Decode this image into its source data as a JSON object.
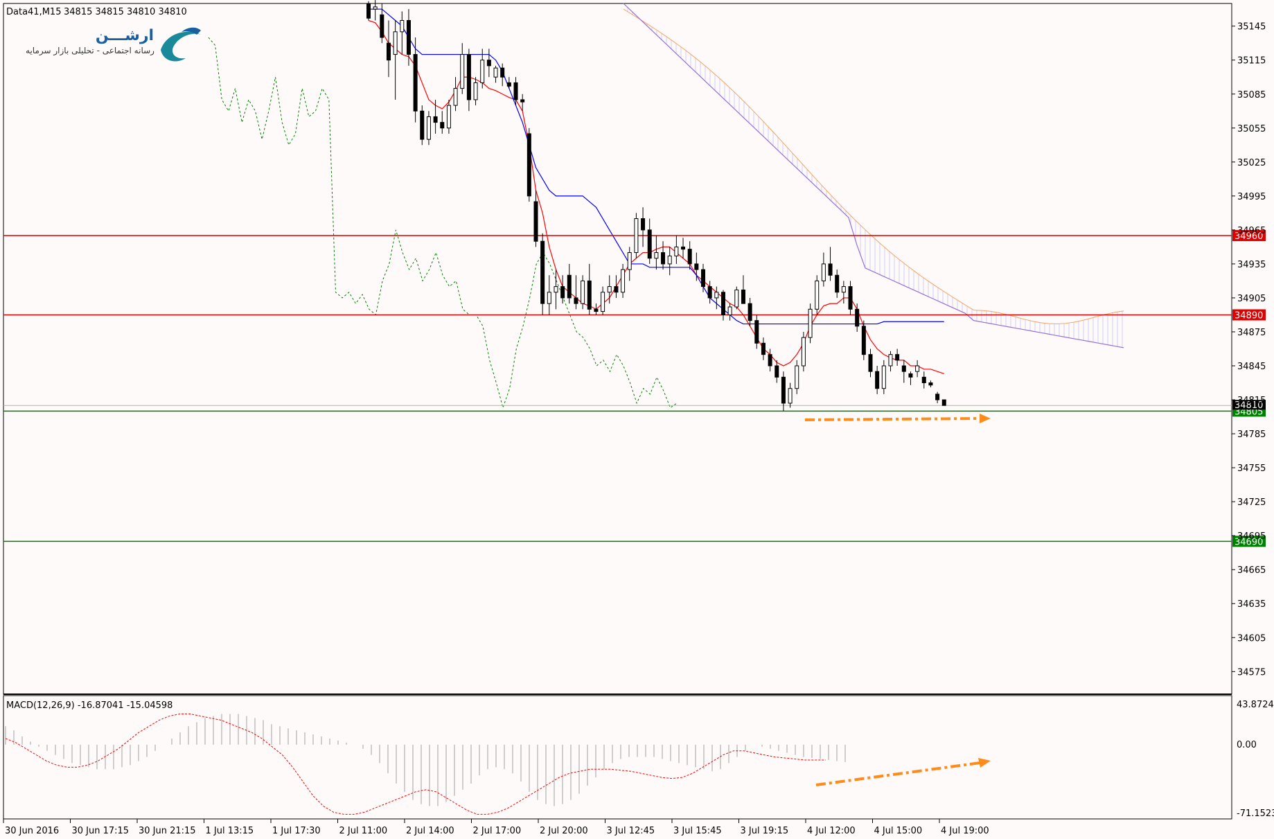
{
  "header": {
    "symbol": "Data41,M15",
    "ohlc": "34815 34815 34810 34810"
  },
  "logo": {
    "name": "ارشـــن",
    "tagline": "رسانه اجتماعی - تحلیلی بازار سرمایه"
  },
  "macd": {
    "label": "MACD(12,26,9) -16.87041 -15.04598",
    "ticks": [
      "43.87242",
      "0.00",
      "-71.15236"
    ]
  },
  "colors": {
    "background": "#fffafa",
    "bull_candle": "#ffffff",
    "bear_candle": "#000000",
    "tenkan": "#ff0000",
    "kijun": "#0000ff",
    "chikou": "#008000",
    "senkou_a": "#f4a460",
    "senkou_b": "#9370db",
    "cloud_hatch": "#c8c8f0",
    "resistance_line": "#e00000",
    "support_line": "#008000",
    "arrow": "#ff8c1a"
  },
  "chart_data": {
    "type": "candlestick",
    "timeframe": "M15",
    "y_ticks": [
      "35145",
      "35115",
      "35085",
      "35055",
      "35025",
      "34995",
      "34965",
      "34935",
      "34905",
      "34875",
      "34845",
      "34815",
      "34785",
      "34755",
      "34725",
      "34695",
      "34665",
      "34635",
      "34605",
      "34575"
    ],
    "ylim": [
      34555,
      35165
    ],
    "x_ticks": [
      "30 Jun 2016",
      "30 Jun 17:15",
      "30 Jun 21:15",
      "1 Jul 13:15",
      "1 Jul 17:30",
      "2 Jul 11:00",
      "2 Jul 14:00",
      "2 Jul 17:00",
      "2 Jul 20:00",
      "3 Jul 12:45",
      "3 Jul 15:45",
      "3 Jul 19:15",
      "4 Jul 12:00",
      "4 Jul 15:00",
      "4 Jul 19:00"
    ],
    "last_price": 34810,
    "horizontal_levels": [
      {
        "value": 34960,
        "label": "34960",
        "color": "red"
      },
      {
        "value": 34890,
        "label": "34890",
        "color": "red"
      },
      {
        "value": 34805,
        "label": "34805",
        "color": "green"
      },
      {
        "value": 34690,
        "label": "34690",
        "color": "green"
      }
    ],
    "candles": [
      [
        35165,
        35167,
        35150,
        35152
      ],
      [
        35160,
        35168,
        35150,
        35162
      ],
      [
        35155,
        35165,
        35130,
        35135
      ],
      [
        35130,
        35150,
        35100,
        35115
      ],
      [
        35120,
        35150,
        35080,
        35140
      ],
      [
        35140,
        35158,
        35120,
        35150
      ],
      [
        35150,
        35160,
        35110,
        35120
      ],
      [
        35120,
        35135,
        35060,
        35070
      ],
      [
        35070,
        35075,
        35040,
        35045
      ],
      [
        35045,
        35070,
        35040,
        35065
      ],
      [
        35065,
        35080,
        35050,
        35060
      ],
      [
        35060,
        35070,
        35050,
        35055
      ],
      [
        35055,
        35080,
        35050,
        35075
      ],
      [
        35075,
        35100,
        35070,
        35090
      ],
      [
        35090,
        35130,
        35085,
        35120
      ],
      [
        35120,
        35125,
        35070,
        35080
      ],
      [
        35080,
        35100,
        35075,
        35095
      ],
      [
        35095,
        35125,
        35090,
        35115
      ],
      [
        35115,
        35125,
        35100,
        35110
      ],
      [
        35100,
        35110,
        35095,
        35108
      ],
      [
        35108,
        35112,
        35092,
        35100
      ],
      [
        35095,
        35100,
        35090,
        35092
      ],
      [
        35095,
        35100,
        35075,
        35080
      ],
      [
        35080,
        35085,
        35070,
        35078
      ],
      [
        35050,
        35055,
        34990,
        34995
      ],
      [
        34990,
        35000,
        34950,
        34955
      ],
      [
        34955,
        34962,
        34890,
        34900
      ],
      [
        34900,
        34925,
        34890,
        34910
      ],
      [
        34910,
        34930,
        34895,
        34915
      ],
      [
        34915,
        34925,
        34900,
        34905
      ],
      [
        34925,
        34935,
        34900,
        34905
      ],
      [
        34905,
        34925,
        34895,
        34900
      ],
      [
        34900,
        34925,
        34895,
        34920
      ],
      [
        34920,
        34935,
        34890,
        34895
      ],
      [
        34895,
        34900,
        34890,
        34893
      ],
      [
        34893,
        34915,
        34890,
        34910
      ],
      [
        34910,
        34925,
        34900,
        34915
      ],
      [
        34915,
        34925,
        34905,
        34910
      ],
      [
        34910,
        34935,
        34905,
        34930
      ],
      [
        34930,
        34950,
        34920,
        34945
      ],
      [
        34945,
        34980,
        34940,
        34975
      ],
      [
        34975,
        34985,
        34950,
        34965
      ],
      [
        34965,
        34975,
        34935,
        34940
      ],
      [
        34940,
        34960,
        34930,
        34945
      ],
      [
        34945,
        34955,
        34930,
        34935
      ],
      [
        34935,
        34950,
        34925,
        34942
      ],
      [
        34942,
        34960,
        34935,
        34950
      ],
      [
        34950,
        34958,
        34940,
        34948
      ],
      [
        34948,
        34955,
        34930,
        34935
      ],
      [
        34935,
        34945,
        34920,
        34930
      ],
      [
        34930,
        34935,
        34910,
        34915
      ],
      [
        34915,
        34920,
        34900,
        34905
      ],
      [
        34905,
        34915,
        34895,
        34910
      ],
      [
        34910,
        34912,
        34885,
        34890
      ],
      [
        34890,
        34900,
        34885,
        34897
      ],
      [
        34897,
        34915,
        34895,
        34912
      ],
      [
        34912,
        34925,
        34905,
        34900
      ],
      [
        34900,
        34905,
        34880,
        34885
      ],
      [
        34885,
        34890,
        34860,
        34865
      ],
      [
        34865,
        34870,
        34850,
        34855
      ],
      [
        34855,
        34860,
        34840,
        34845
      ],
      [
        34845,
        34850,
        34830,
        34835
      ],
      [
        34835,
        34840,
        34805,
        34812
      ],
      [
        34812,
        34830,
        34808,
        34825
      ],
      [
        34825,
        34850,
        34820,
        34845
      ],
      [
        34845,
        34875,
        34840,
        34870
      ],
      [
        34870,
        34900,
        34865,
        34895
      ],
      [
        34895,
        34925,
        34890,
        34920
      ],
      [
        34920,
        34945,
        34915,
        34935
      ],
      [
        34935,
        34950,
        34920,
        34925
      ],
      [
        34925,
        34930,
        34905,
        34910
      ],
      [
        34910,
        34920,
        34900,
        34915
      ],
      [
        34915,
        34920,
        34890,
        34895
      ],
      [
        34895,
        34900,
        34875,
        34880
      ],
      [
        34880,
        34885,
        34850,
        34855
      ],
      [
        34855,
        34860,
        34835,
        34840
      ],
      [
        34840,
        34845,
        34820,
        34825
      ],
      [
        34825,
        34850,
        34820,
        34845
      ],
      [
        34845,
        34858,
        34840,
        34855
      ],
      [
        34855,
        34860,
        34845,
        34850
      ],
      [
        34845,
        34850,
        34830,
        34840
      ],
      [
        34838,
        34840,
        34828,
        34835
      ],
      [
        34840,
        34850,
        34835,
        34845
      ],
      [
        34835,
        34840,
        34825,
        34830
      ],
      [
        34830,
        34832,
        34826,
        34828
      ],
      [
        34820,
        34822,
        34812,
        34815
      ],
      [
        34815,
        34815,
        34810,
        34810
      ]
    ],
    "tenkan_sen": [
      35150,
      35148,
      35140,
      35130,
      35125,
      35120,
      35118,
      35110,
      35095,
      35080,
      35075,
      35072,
      35078,
      35088,
      35100,
      35100,
      35098,
      35095,
      35090,
      35088,
      35085,
      35082,
      35080,
      35070,
      35040,
      35000,
      34980,
      34950,
      34930,
      34915,
      34910,
      34905,
      34900,
      34898,
      34895,
      34900,
      34905,
      34915,
      34925,
      34935,
      34940,
      34945,
      34945,
      34948,
      34950,
      34950,
      34945,
      34940,
      34935,
      34925,
      34920,
      34915,
      34910,
      34905,
      34900,
      34897,
      34890,
      34880,
      34870,
      34860,
      34855,
      34848,
      34845,
      34848,
      34855,
      34865,
      34880,
      34890,
      34898,
      34900,
      34900,
      34905,
      34905,
      34895,
      34880,
      34868,
      34860,
      34855,
      34852,
      34850,
      34850,
      34845,
      34845,
      34842,
      34842,
      34840,
      34838
    ],
    "kijun_sen": [
      35160,
      35160,
      35160,
      35155,
      35150,
      35145,
      35135,
      35125,
      35120,
      35120,
      35120,
      35120,
      35120,
      35120,
      35120,
      35120,
      35120,
      35120,
      35120,
      35115,
      35105,
      35090,
      35075,
      35060,
      35040,
      35020,
      35010,
      35000,
      34995,
      34995,
      34995,
      34995,
      34995,
      34990,
      34985,
      34975,
      34965,
      34955,
      34945,
      34935,
      34935,
      34935,
      34932,
      34932,
      34932,
      34932,
      34932,
      34932,
      34932,
      34925,
      34915,
      34905,
      34900,
      34895,
      34890,
      34885,
      34882,
      34882,
      34882,
      34882,
      34882,
      34882,
      34882,
      34882,
      34882,
      34882,
      34882,
      34882,
      34882,
      34882,
      34882,
      34882,
      34882,
      34882,
      34882,
      34882,
      34882,
      34884,
      34884,
      34884,
      34884,
      34884,
      34884,
      34884,
      34884,
      34884,
      34884
    ],
    "chikou_span": [
      35135,
      35128,
      35080,
      35070,
      35090,
      35060,
      35080,
      35070,
      35045,
      35070,
      35100,
      35060,
      35040,
      35050,
      35090,
      35065,
      35070,
      35090,
      35080,
      34910,
      34905,
      34910,
      34900,
      34908,
      34895,
      34890,
      34920,
      34935,
      34965,
      34945,
      34930,
      34940,
      34920,
      34930,
      34945,
      34925,
      34915,
      34920,
      34895,
      34890,
      34890,
      34880,
      34850,
      34830,
      34808,
      34825,
      34860,
      34880,
      34905,
      34935,
      34945,
      34935,
      34920,
      34905,
      34890,
      34875,
      34870,
      34860,
      34845,
      34850,
      34840,
      34855,
      34845,
      34830,
      34812,
      34825,
      34820,
      34835,
      34823,
      34808,
      34812
    ]
  },
  "macd_data": {
    "ylim": [
      -71.15,
      43.87
    ],
    "histogram": [
      18,
      14,
      8,
      3,
      -2,
      -6,
      -10,
      -14,
      -18,
      -20,
      -22,
      -24,
      -24,
      -24,
      -22,
      -20,
      -16,
      -12,
      -6,
      0,
      6,
      12,
      18,
      22,
      26,
      28,
      30,
      30,
      30,
      28,
      26,
      24,
      20,
      18,
      16,
      14,
      12,
      10,
      8,
      6,
      4,
      2,
      0,
      -4,
      -10,
      -18,
      -28,
      -38,
      -46,
      -54,
      -58,
      -60,
      -60,
      -56,
      -50,
      -44,
      -38,
      -30,
      -24,
      -22,
      -24,
      -28,
      -36,
      -46,
      -54,
      -58,
      -60,
      -58,
      -54,
      -48,
      -40,
      -32,
      -24,
      -18,
      -14,
      -12,
      -12,
      -12,
      -12,
      -14,
      -16,
      -18,
      -20,
      -22,
      -24,
      -26,
      -24,
      -18,
      -12,
      -6,
      0,
      -2,
      -4,
      -6,
      -8,
      -10,
      -12,
      -13,
      -14,
      -15,
      -16,
      -17
    ],
    "signal": [
      6,
      2,
      -4,
      -10,
      -16,
      -20,
      -22,
      -22,
      -20,
      -16,
      -10,
      -4,
      4,
      12,
      18,
      24,
      28,
      30,
      30,
      28,
      26,
      24,
      20,
      16,
      12,
      6,
      -2,
      -10,
      -22,
      -36,
      -50,
      -60,
      -66,
      -68,
      -68,
      -66,
      -62,
      -58,
      -54,
      -50,
      -46,
      -44,
      -46,
      -52,
      -58,
      -64,
      -68,
      -68,
      -66,
      -62,
      -56,
      -50,
      -44,
      -38,
      -32,
      -28,
      -26,
      -24,
      -24,
      -24,
      -25,
      -26,
      -28,
      -30,
      -32,
      -33,
      -32,
      -28,
      -22,
      -16,
      -10,
      -6,
      -6,
      -8,
      -10,
      -12,
      -13,
      -14,
      -15,
      -15,
      -15
    ]
  }
}
